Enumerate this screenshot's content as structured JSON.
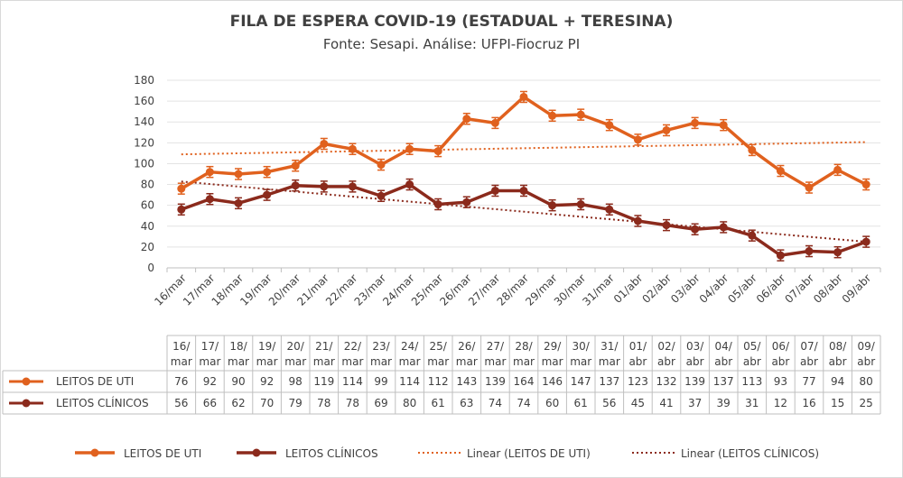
{
  "chart_data": {
    "type": "line",
    "title": "FILA DE ESPERA COVID-19 (ESTADUAL + TERESINA)",
    "subtitle": "Fonte: Sesapi. Análise: UFPI-Fiocruz PI",
    "categories": [
      "16/mar",
      "17/mar",
      "18/mar",
      "19/mar",
      "20/mar",
      "21/mar",
      "22/mar",
      "23/mar",
      "24/mar",
      "25/mar",
      "26/mar",
      "27/mar",
      "28/mar",
      "29/mar",
      "30/mar",
      "31/mar",
      "01/abr",
      "02/abr",
      "03/abr",
      "04/abr",
      "05/abr",
      "06/abr",
      "07/abr",
      "08/abr",
      "09/abr"
    ],
    "table_header_line1": [
      "16/",
      "17/",
      "18/",
      "19/",
      "20/",
      "21/",
      "22/",
      "23/",
      "24/",
      "25/",
      "26/",
      "27/",
      "28/",
      "29/",
      "30/",
      "31/",
      "01/",
      "02/",
      "03/",
      "04/",
      "05/",
      "06/",
      "07/",
      "08/",
      "09/"
    ],
    "table_header_line2": [
      "mar",
      "mar",
      "mar",
      "mar",
      "mar",
      "mar",
      "mar",
      "mar",
      "mar",
      "mar",
      "mar",
      "mar",
      "mar",
      "mar",
      "mar",
      "mar",
      "abr",
      "abr",
      "abr",
      "abr",
      "abr",
      "abr",
      "abr",
      "abr",
      "abr"
    ],
    "series": [
      {
        "name": "LEITOS DE UTI",
        "color": "#e0611e",
        "values": [
          76,
          92,
          90,
          92,
          98,
          119,
          114,
          99,
          114,
          112,
          143,
          139,
          164,
          146,
          147,
          137,
          123,
          132,
          139,
          137,
          113,
          93,
          77,
          94,
          80
        ]
      },
      {
        "name": "LEITOS CLÍNICOS",
        "color": "#8b2a1c",
        "values": [
          56,
          66,
          62,
          70,
          79,
          78,
          78,
          69,
          80,
          61,
          63,
          74,
          74,
          60,
          61,
          56,
          45,
          41,
          37,
          39,
          31,
          12,
          16,
          15,
          25
        ]
      }
    ],
    "trendlines": [
      {
        "name": "Linear (LEITOS DE UTI)",
        "color": "#e0611e"
      },
      {
        "name": "Linear (LEITOS CLÍNICOS)",
        "color": "#8b2a1c"
      }
    ],
    "yticks": [
      "0",
      "20",
      "40",
      "60",
      "80",
      "100",
      "120",
      "140",
      "160",
      "180"
    ],
    "ylim": [
      0,
      180
    ],
    "grid": true,
    "legend": "bottom"
  }
}
